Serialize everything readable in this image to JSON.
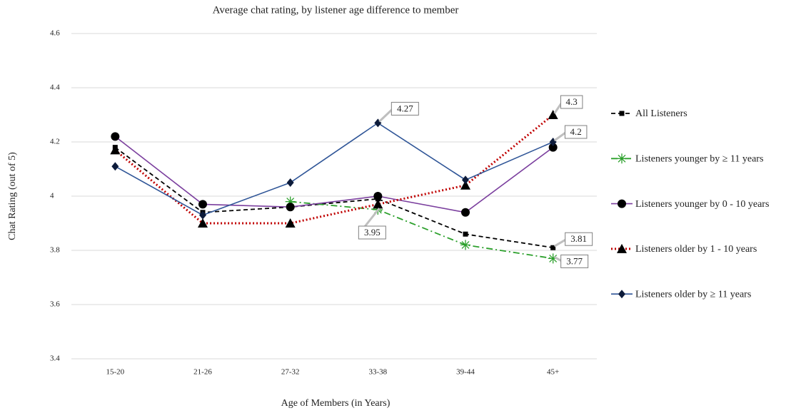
{
  "chart_data": {
    "type": "line",
    "title": "Average chat rating, by listener age difference to member",
    "x_label": "Age of Members (in Years)",
    "y_label": "Chat Rating (out of 5)",
    "categories": [
      "15-20",
      "21-26",
      "27-32",
      "33-38",
      "39-44",
      "45+"
    ],
    "ylim": [
      3.4,
      4.6
    ],
    "yticks": [
      3.4,
      3.6,
      3.8,
      4,
      4.2,
      4.4,
      4.6
    ],
    "grid": true,
    "legend": "right",
    "series": [
      {
        "name": "All Listeners",
        "color": "#000000",
        "dash": "dashed",
        "marker": "square",
        "values": [
          4.18,
          3.94,
          3.96,
          3.99,
          3.86,
          3.81
        ],
        "value_labels": [
          null,
          null,
          null,
          null,
          null,
          "3.81"
        ]
      },
      {
        "name": "Listeners younger by ≥ 11 years",
        "color": "#2ca02c",
        "dash": "dashdot",
        "marker": "asterisk",
        "values": [
          null,
          null,
          3.98,
          3.95,
          3.82,
          3.77
        ],
        "value_labels": [
          null,
          null,
          null,
          "3.95",
          null,
          "3.77"
        ]
      },
      {
        "name": "Listeners younger by 0 - 10 years",
        "color": "#7b3f9e",
        "dash": "solid",
        "marker": "circle",
        "values": [
          4.22,
          3.97,
          3.96,
          4.0,
          3.94,
          4.18
        ],
        "value_labels": [
          null,
          null,
          null,
          null,
          null,
          null
        ]
      },
      {
        "name": "Listeners older by 1 - 10 years",
        "color": "#c00000",
        "dash": "dotted",
        "marker": "triangle",
        "values": [
          4.17,
          3.9,
          3.9,
          3.97,
          4.04,
          4.3
        ],
        "value_labels": [
          null,
          null,
          null,
          null,
          null,
          "4.3"
        ]
      },
      {
        "name": "Listeners older by ≥ 11 years",
        "color": "#2f5597",
        "dash": "solid",
        "marker": "diamond",
        "values": [
          4.11,
          3.93,
          4.05,
          4.27,
          4.06,
          4.2
        ],
        "value_labels": [
          null,
          null,
          null,
          "4.27",
          null,
          "4.2"
        ]
      }
    ]
  }
}
